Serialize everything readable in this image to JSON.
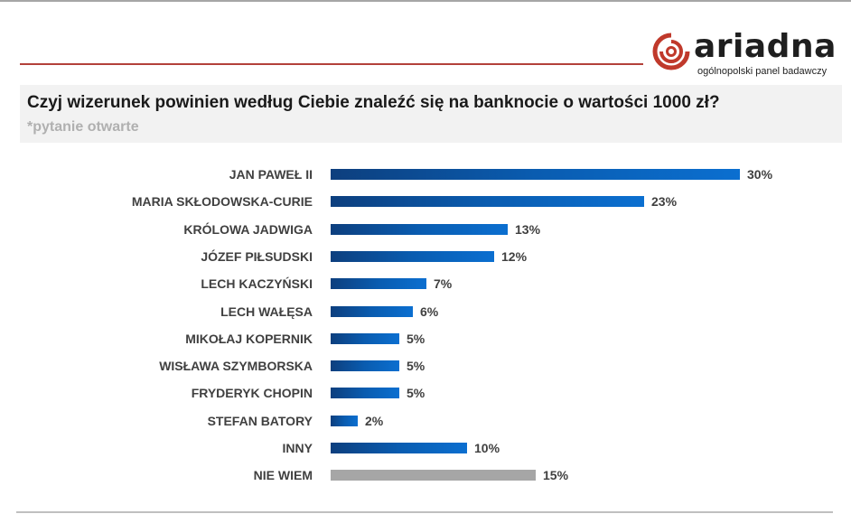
{
  "brand": {
    "name": "ariadna",
    "tagline": "ogólnopolski panel badawczy",
    "accent_color": "#c0392b"
  },
  "header": {
    "question": "Czyj wizerunek powinien według Ciebie znaleźć się na banknocie o wartości 1000 zł?",
    "note": "*pytanie otwarte"
  },
  "chart_data": {
    "type": "bar",
    "orientation": "horizontal",
    "title": "Czyj wizerunek powinien według Ciebie znaleźć się na banknocie o wartości 1000 zł?",
    "subtitle": "*pytanie otwarte",
    "xlabel": "",
    "ylabel": "",
    "grid": false,
    "legend": null,
    "unit": "%",
    "categories": [
      "JAN PAWEŁ II",
      "MARIA SKŁODOWSKA-CURIE",
      "KRÓLOWA JADWIGA",
      "JÓZEF PIŁSUDSKI",
      "LECH KACZYŃSKI",
      "LECH WAŁĘSA",
      "MIKOŁAJ KOPERNIK",
      "WISŁAWA SZYMBORSKA",
      "FRYDERYK CHOPIN",
      "STEFAN BATORY",
      "INNY",
      "NIE WIEM"
    ],
    "values": [
      30,
      23,
      13,
      12,
      7,
      6,
      5,
      5,
      5,
      2,
      10,
      15
    ],
    "value_labels": [
      "30%",
      "23%",
      "13%",
      "12%",
      "7%",
      "6%",
      "5%",
      "5%",
      "5%",
      "2%",
      "10%",
      "15%"
    ],
    "colors": [
      "#0a5cb0",
      "#0a5cb0",
      "#0a5cb0",
      "#0a5cb0",
      "#0a5cb0",
      "#0a5cb0",
      "#0a5cb0",
      "#0a5cb0",
      "#0a5cb0",
      "#0a5cb0",
      "#0a5cb0",
      "#a6a6a6"
    ]
  }
}
